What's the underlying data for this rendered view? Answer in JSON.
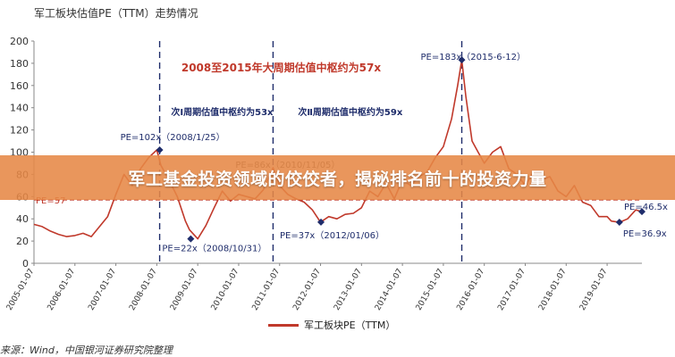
{
  "chart_data": {
    "type": "line",
    "title": "军工板块估值PE（TTM）走势情况",
    "ylim": [
      0,
      200
    ],
    "y_ticks": [
      0,
      20,
      40,
      60,
      80,
      100,
      120,
      140,
      160,
      180,
      200
    ],
    "x_ticks": [
      "2005-01-07",
      "2006-01-07",
      "2007-01-07",
      "2008-01-07",
      "2009-01-07",
      "2010-01-07",
      "2011-01-07",
      "2012-01-07",
      "2013-01-07",
      "2014-01-07",
      "2015-01-07",
      "2016-01-07",
      "2017-01-07",
      "2018-01-07",
      "2019-01-07"
    ],
    "xlim": [
      2005.0,
      2019.85
    ],
    "series": [
      {
        "name": "军工板块PE（TTM）",
        "color": "#c0392b",
        "x": [
          2005.0,
          2005.2,
          2005.4,
          2005.6,
          2005.8,
          2006.0,
          2006.2,
          2006.4,
          2006.6,
          2006.8,
          2007.0,
          2007.2,
          2007.4,
          2007.6,
          2007.8,
          2008.0,
          2008.1,
          2008.3,
          2008.5,
          2008.7,
          2008.8,
          2009.0,
          2009.2,
          2009.4,
          2009.6,
          2009.8,
          2010.0,
          2010.2,
          2010.4,
          2010.6,
          2010.84,
          2011.0,
          2011.2,
          2011.4,
          2011.6,
          2011.8,
          2012.0,
          2012.2,
          2012.4,
          2012.6,
          2012.8,
          2013.0,
          2013.2,
          2013.4,
          2013.6,
          2013.8,
          2014.0,
          2014.2,
          2014.4,
          2014.6,
          2014.8,
          2015.0,
          2015.2,
          2015.35,
          2015.45,
          2015.55,
          2015.7,
          2015.85,
          2016.0,
          2016.2,
          2016.4,
          2016.6,
          2016.8,
          2017.0,
          2017.2,
          2017.4,
          2017.6,
          2017.8,
          2018.0,
          2018.2,
          2018.4,
          2018.6,
          2018.8,
          2019.0,
          2019.1,
          2019.3,
          2019.5,
          2019.7,
          2019.85
        ],
        "y": [
          35,
          33,
          29,
          26,
          24,
          25,
          27,
          24,
          33,
          42,
          62,
          80,
          70,
          85,
          95,
          102,
          88,
          75,
          60,
          38,
          30,
          22,
          34,
          50,
          65,
          56,
          62,
          60,
          58,
          66,
          86,
          70,
          62,
          58,
          55,
          48,
          37,
          42,
          40,
          44,
          45,
          50,
          65,
          60,
          72,
          58,
          75,
          70,
          78,
          82,
          95,
          105,
          130,
          160,
          183,
          150,
          110,
          100,
          90,
          100,
          105,
          85,
          80,
          70,
          82,
          75,
          78,
          65,
          60,
          70,
          55,
          52,
          42,
          42,
          38,
          36.9,
          40,
          48,
          46.5
        ]
      }
    ],
    "annotations": [
      {
        "text": "2008至2015年大周期估值中枢约为57x",
        "color": "#c0392b"
      },
      {
        "text": "次Ⅰ周期估值中枢约为53x",
        "color": "#1f2d6b"
      },
      {
        "text": "次Ⅱ周期估值中枢约为59x",
        "color": "#1f2d6b"
      },
      {
        "text": "PE=102x（2008/1/25）",
        "x": 2008.07,
        "y": 102
      },
      {
        "text": "PE=86x（2010/11/05）",
        "x": 2010.84,
        "y": 86
      },
      {
        "text": "PE=183x（2015-6-12）",
        "x": 2015.45,
        "y": 183
      },
      {
        "text": "PE=22x（2008/10/31）",
        "x": 2008.83,
        "y": 22
      },
      {
        "text": "PE=37x（2012/01/06）",
        "x": 2012.01,
        "y": 37
      },
      {
        "text": "PE=36.9x",
        "x": 2019.3,
        "y": 36.9
      },
      {
        "text": "PE=46.5x",
        "x": 2019.85,
        "y": 46.5
      },
      {
        "text": "PE=57"
      }
    ],
    "reference_line": {
      "y": 57,
      "style": "dashed",
      "color": "#c0392b"
    },
    "cycle_dividers": [
      2008.07,
      2010.84,
      2015.45
    ],
    "grid": false
  },
  "banner": {
    "text": "军工基金投资领域的佼佼者，揭秘排名前十的投资力量"
  },
  "source": "来源：Wind，中国银河证券研究院整理"
}
